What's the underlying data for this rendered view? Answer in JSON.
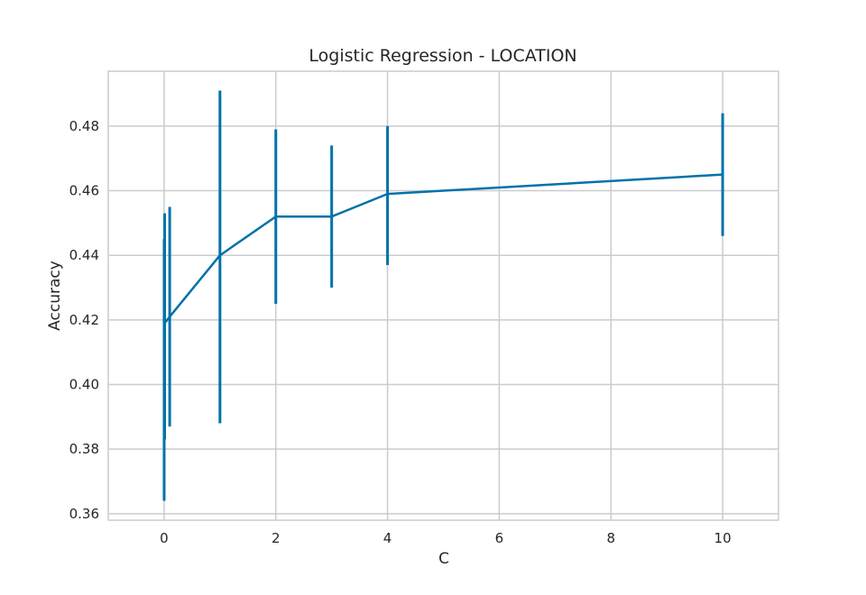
{
  "chart_data": {
    "type": "line",
    "title": "Logistic Regression - LOCATION",
    "xlabel": "C",
    "ylabel": "Accuracy",
    "xlim": [
      -1,
      11
    ],
    "ylim": [
      0.358,
      0.497
    ],
    "xticks": [
      0,
      2,
      4,
      6,
      8,
      10
    ],
    "yticks": [
      0.36,
      0.38,
      0.4,
      0.42,
      0.44,
      0.46,
      0.48
    ],
    "ytick_labels": [
      "0.36",
      "0.38",
      "0.40",
      "0.42",
      "0.44",
      "0.46",
      "0.48"
    ],
    "grid": true,
    "line_color": "#0072a8",
    "series": [
      {
        "x": [
          0.001,
          0.01,
          0.1,
          1,
          2,
          3,
          4,
          10
        ],
        "y": [
          0.404,
          0.419,
          0.421,
          0.44,
          0.452,
          0.452,
          0.459,
          0.465
        ],
        "err_low": [
          0.364,
          0.383,
          0.387,
          0.388,
          0.425,
          0.43,
          0.437,
          0.446
        ],
        "err_high": [
          0.445,
          0.453,
          0.455,
          0.491,
          0.479,
          0.474,
          0.48,
          0.484
        ]
      }
    ]
  }
}
